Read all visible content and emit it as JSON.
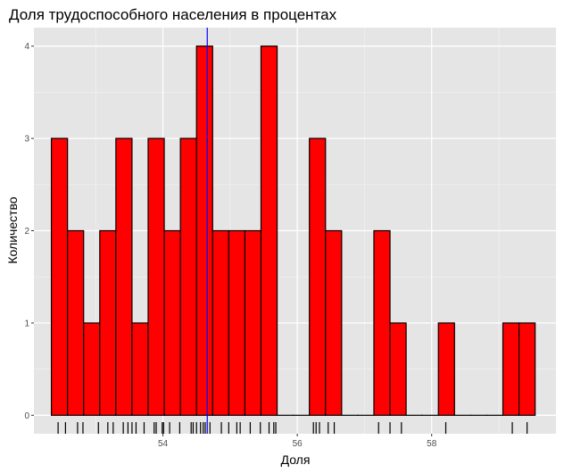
{
  "chart_data": {
    "type": "bar",
    "title": "Доля трудоспособного населения в процентах",
    "xlabel": "Доля",
    "ylabel": "Количество",
    "xlim": [
      52.08,
      59.85
    ],
    "ylim": [
      -0.2,
      4.2
    ],
    "x_ticks": [
      54,
      56,
      58
    ],
    "y_ticks": [
      0,
      1,
      2,
      3,
      4
    ],
    "grid": true,
    "bin_width": 0.24,
    "bins": [
      {
        "x": 52.46,
        "count": 3
      },
      {
        "x": 52.7,
        "count": 2
      },
      {
        "x": 52.94,
        "count": 1
      },
      {
        "x": 53.18,
        "count": 2
      },
      {
        "x": 53.42,
        "count": 3
      },
      {
        "x": 53.66,
        "count": 1
      },
      {
        "x": 53.9,
        "count": 3
      },
      {
        "x": 54.14,
        "count": 2
      },
      {
        "x": 54.38,
        "count": 3
      },
      {
        "x": 54.62,
        "count": 4
      },
      {
        "x": 54.86,
        "count": 2
      },
      {
        "x": 55.1,
        "count": 2
      },
      {
        "x": 55.34,
        "count": 2
      },
      {
        "x": 55.58,
        "count": 4
      },
      {
        "x": 55.82,
        "count": 0
      },
      {
        "x": 56.06,
        "count": 0
      },
      {
        "x": 56.3,
        "count": 3
      },
      {
        "x": 56.54,
        "count": 2
      },
      {
        "x": 56.78,
        "count": 0
      },
      {
        "x": 57.02,
        "count": 0
      },
      {
        "x": 57.26,
        "count": 2
      },
      {
        "x": 57.5,
        "count": 1
      },
      {
        "x": 57.74,
        "count": 0
      },
      {
        "x": 57.98,
        "count": 0
      },
      {
        "x": 58.22,
        "count": 1
      },
      {
        "x": 58.46,
        "count": 0
      },
      {
        "x": 58.7,
        "count": 0
      },
      {
        "x": 58.94,
        "count": 0
      },
      {
        "x": 59.18,
        "count": 1
      },
      {
        "x": 59.42,
        "count": 1
      }
    ],
    "rug": [
      52.44,
      52.55,
      52.73,
      52.81,
      53.04,
      53.18,
      53.26,
      53.41,
      53.48,
      53.54,
      53.6,
      53.72,
      53.87,
      53.9,
      53.99,
      54.01,
      54.1,
      54.25,
      54.42,
      54.45,
      54.5,
      54.56,
      54.6,
      54.63,
      54.7,
      54.87,
      54.98,
      55.1,
      55.15,
      55.3,
      55.45,
      55.58,
      55.65,
      55.68,
      56.24,
      56.28,
      56.33,
      56.46,
      56.55,
      57.21,
      57.38,
      57.55,
      58.21,
      59.2,
      59.42
    ],
    "vline": 54.66,
    "colors": {
      "panel": "#e5e5e5",
      "grid_major": "#ffffff",
      "bar_fill": "#ff0000",
      "bar_outline": "#000000",
      "vline": "#0000ff",
      "rug": "#000000"
    }
  }
}
